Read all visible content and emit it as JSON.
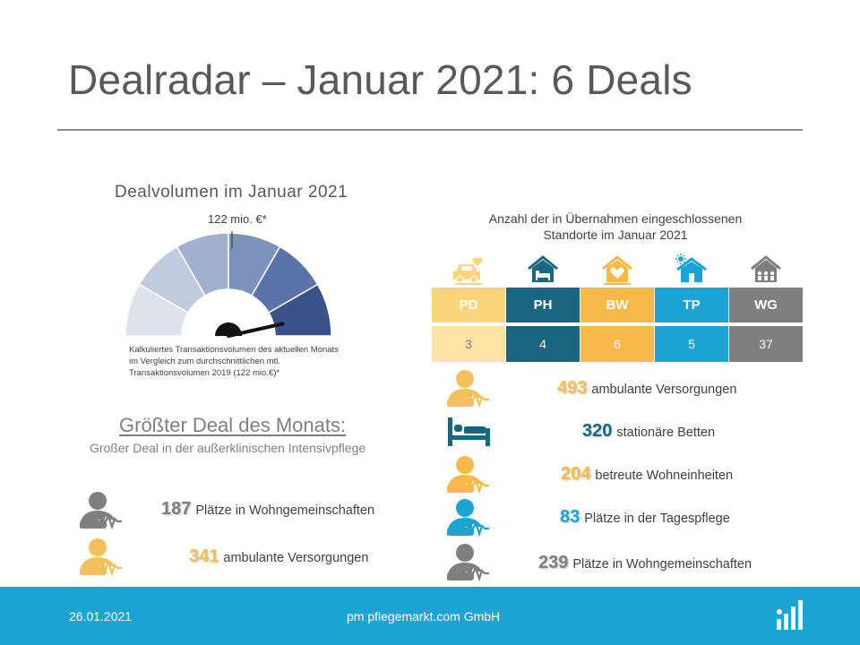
{
  "title": "Dealradar – Januar 2021: 6 Deals",
  "gauge": {
    "title": "Dealvolumen  im Januar 2021",
    "value_label": "122 mio. €*",
    "needle_fraction": 0.93,
    "segment_colors": [
      "#dde3ed",
      "#c1cbdf",
      "#a1b0ce",
      "#7d92bd",
      "#5a73a8",
      "#3a5287"
    ],
    "note": "Kalkuliertes Transaktionsvolumen des aktuellen Monats im Vergleich zum durchschnittlichen mtl. Transaktionsvolumen 2019 (122 mio.€)*"
  },
  "largest_deal": {
    "heading": "Größter Deal des Monats:",
    "subtitle": "Großer Deal in der außerklinischen Intensivpflege",
    "stats": [
      {
        "number": "187",
        "text": "Plätze in Wohngemeinschaften",
        "color": "#7f7f7f",
        "icon": "person-pulse-icon"
      },
      {
        "number": "341",
        "text": "ambulante Versorgungen",
        "color": "#f5c05b",
        "icon": "person-pulse-icon"
      }
    ]
  },
  "locations": {
    "heading_line1": "Anzahl der in Übernahmen eingeschlossenen",
    "heading_line2": "Standorte im Januar 2021",
    "categories": [
      {
        "code": "PD",
        "count": "3",
        "color": "#fbd57d",
        "count_color": "#fce3a6",
        "count_text_color": "#7f7f7f",
        "icon": "car-icon"
      },
      {
        "code": "PH",
        "count": "4",
        "color": "#1a657f",
        "count_color": "#1a657f",
        "count_text_color": "#ffffff",
        "icon": "house-bed-icon"
      },
      {
        "code": "BW",
        "count": "6",
        "color": "#f8b94a",
        "count_color": "#f8b94a",
        "count_text_color": "#ffffff",
        "icon": "house-heart-icon"
      },
      {
        "code": "TP",
        "count": "5",
        "color": "#1ba3d3",
        "count_color": "#1ba3d3",
        "count_text_color": "#ffffff",
        "icon": "house-sun-icon"
      },
      {
        "code": "WG",
        "count": "37",
        "color": "#7f7f7f",
        "count_color": "#7f7f7f",
        "count_text_color": "#ffffff",
        "icon": "house-group-icon"
      }
    ],
    "stats": [
      {
        "number": "493",
        "text": "ambulante Versorgungen",
        "color": "#f5c05b",
        "icon": "person-pulse-icon"
      },
      {
        "number": "320",
        "text": "stationäre Betten",
        "color": "#1a657f",
        "icon": "bed-icon"
      },
      {
        "number": "204",
        "text": "betreute Wohneinheiten",
        "color": "#f8b94a",
        "icon": "person-pulse-icon"
      },
      {
        "number": "83",
        "text": "Plätze in der Tagespflege",
        "color": "#1ba3d3",
        "icon": "person-pulse-icon"
      },
      {
        "number": "239",
        "text": "Plätze in Wohngemeinschaften",
        "color": "#7f7f7f",
        "icon": "person-pulse-icon"
      }
    ]
  },
  "footer": {
    "date": "26.01.2021",
    "company": "pm pflegemarkt.com GmbH",
    "logo_icon": "pflegemarkt-logo-icon"
  }
}
